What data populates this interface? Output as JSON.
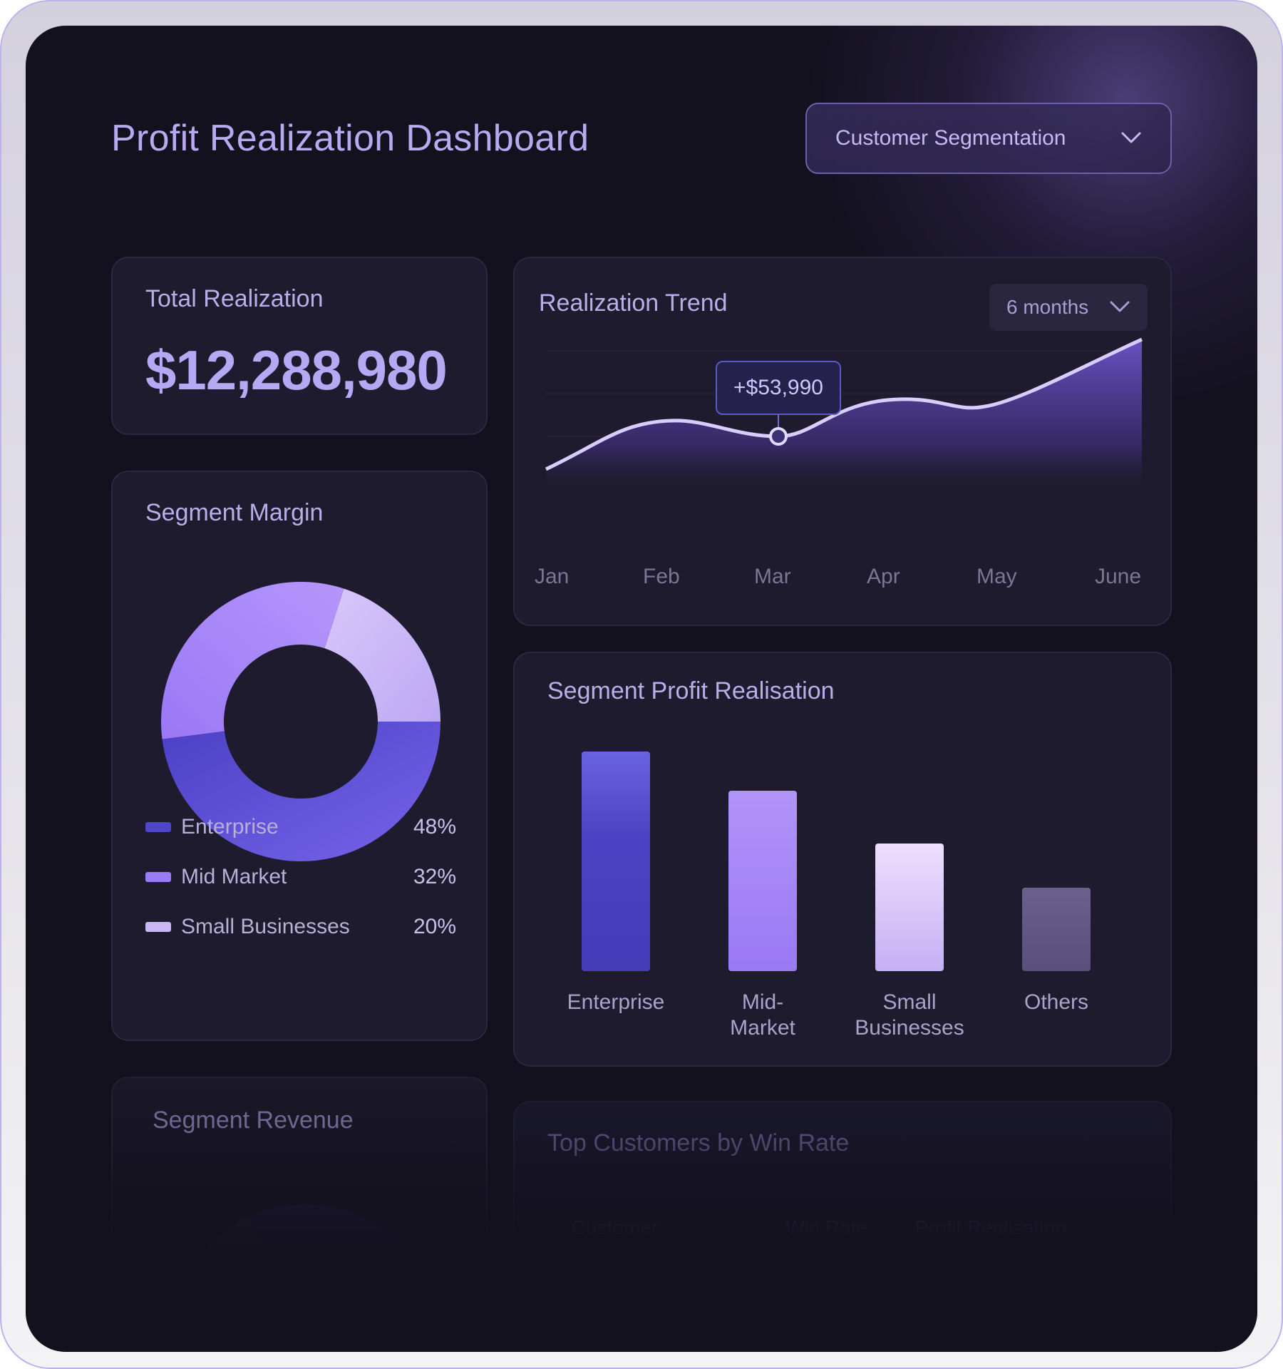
{
  "header": {
    "title": "Profit Realization Dashboard",
    "segmentation_dropdown": "Customer Segmentation"
  },
  "total_realization": {
    "title": "Total Realization",
    "amount": "$12,288,980"
  },
  "segment_margin": {
    "title": "Segment Margin",
    "legend": [
      {
        "label": "Enterprise",
        "value": "48%",
        "color": "#4f45c8"
      },
      {
        "label": "Mid Market",
        "value": "32%",
        "color": "#9b7bf6"
      },
      {
        "label": "Small Businesses",
        "value": "20%",
        "color": "#c9b8f4"
      }
    ]
  },
  "segment_revenue": {
    "title": "Segment Revenue"
  },
  "realization_trend": {
    "title": "Realization Trend",
    "range_dropdown": "6 months",
    "tooltip": "+$53,990"
  },
  "segment_profit": {
    "title": "Segment Profit Realisation",
    "bars": [
      {
        "label": "Enterprise",
        "label2": ""
      },
      {
        "label": "Mid-",
        "label2": "Market"
      },
      {
        "label": "Small",
        "label2": "Businesses"
      },
      {
        "label": "Others",
        "label2": ""
      }
    ]
  },
  "top_customers": {
    "title": "Top Customers by Win Rate",
    "columns": [
      "Customer",
      "Win Rate",
      "Profit Realisation"
    ]
  },
  "chart_data": [
    {
      "type": "area",
      "x": [
        "Jan",
        "Feb",
        "Mar",
        "Apr",
        "May",
        "June"
      ],
      "highlight": {
        "x": "Mar",
        "label": "+$53,990"
      }
    },
    {
      "type": "pie",
      "categories": [
        "Enterprise",
        "Mid Market",
        "Small Businesses"
      ],
      "values": [
        48,
        32,
        20
      ]
    },
    {
      "type": "bar",
      "categories": [
        "Enterprise",
        "Mid-Market",
        "Small Businesses",
        "Others"
      ],
      "values": [
        100,
        82,
        58,
        38
      ]
    }
  ]
}
